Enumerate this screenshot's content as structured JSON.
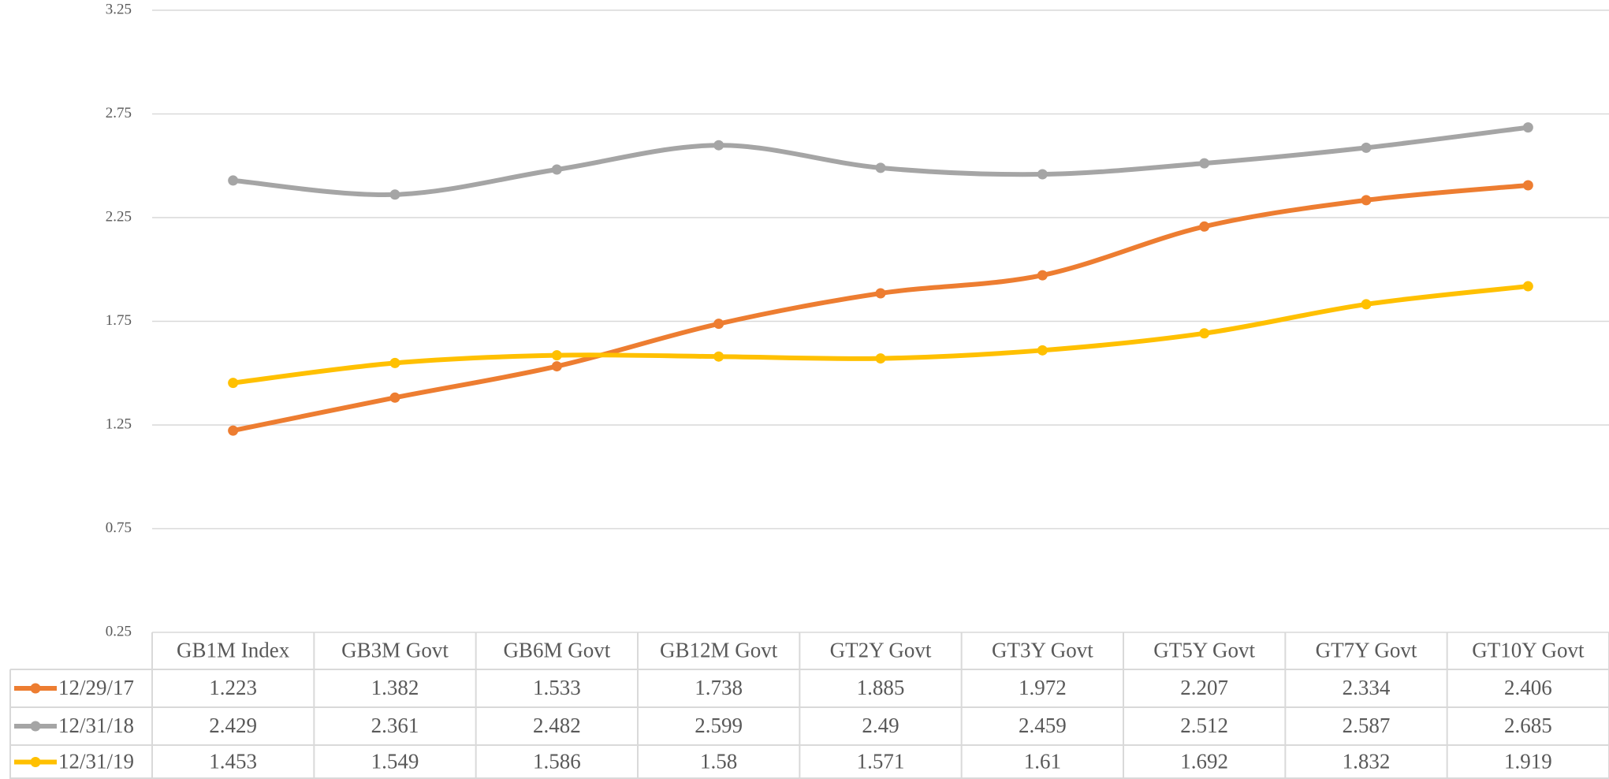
{
  "chart_data": {
    "type": "line",
    "categories": [
      "GB1M Index",
      "GB3M Govt",
      "GB6M Govt",
      "GB12M Govt",
      "GT2Y Govt",
      "GT3Y Govt",
      "GT5Y Govt",
      "GT7Y Govt",
      "GT10Y Govt"
    ],
    "series": [
      {
        "name": "12/29/17",
        "color": "#ED7D31",
        "values": [
          1.223,
          1.382,
          1.533,
          1.738,
          1.885,
          1.972,
          2.207,
          2.334,
          2.406
        ]
      },
      {
        "name": "12/31/18",
        "color": "#A5A5A5",
        "values": [
          2.429,
          2.361,
          2.482,
          2.599,
          2.49,
          2.459,
          2.512,
          2.587,
          2.685
        ]
      },
      {
        "name": "12/31/19",
        "color": "#FFC000",
        "values": [
          1.453,
          1.549,
          1.586,
          1.58,
          1.571,
          1.61,
          1.692,
          1.832,
          1.919
        ]
      }
    ],
    "ylim": [
      0.25,
      3.25
    ],
    "yticks": [
      0.25,
      0.75,
      1.25,
      1.75,
      2.25,
      2.75,
      3.25
    ],
    "grid": true,
    "smooth": true
  }
}
